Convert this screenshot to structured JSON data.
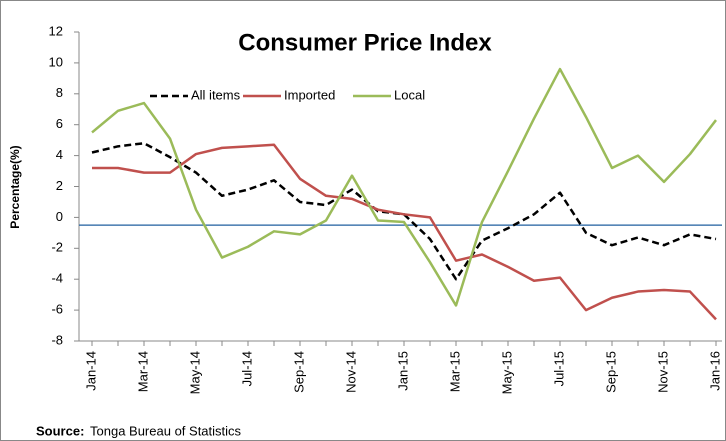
{
  "chart_data": {
    "type": "line",
    "title": "Consumer Price Index",
    "y_label": "Percentage(%)",
    "source_label": "Source:",
    "source": "Tonga Bureau of Statistics",
    "categories": [
      "Jan-14",
      null,
      "Mar-14",
      null,
      "May-14",
      null,
      "Jul-14",
      null,
      "Sep-14",
      null,
      "Nov-14",
      null,
      "Jan-15",
      null,
      "Mar-15",
      null,
      "May-15",
      null,
      "Jul-15",
      null,
      "Sep-15",
      null,
      "Nov-15",
      null,
      "Jan-16"
    ],
    "series": [
      {
        "name": "All items",
        "color": "#000000",
        "dashed": true,
        "values": [
          4.2,
          4.6,
          4.8,
          3.9,
          2.9,
          1.4,
          1.8,
          2.4,
          1.0,
          0.8,
          1.8,
          0.4,
          0.2,
          -1.4,
          -4.0,
          -1.5,
          -0.7,
          0.2,
          1.6,
          -1.0,
          -1.8,
          -1.3,
          -1.8,
          -1.1,
          -1.4
        ]
      },
      {
        "name": "Imported",
        "color": "#c0504d",
        "dashed": false,
        "values": [
          3.2,
          3.2,
          2.9,
          2.9,
          4.1,
          4.5,
          4.6,
          4.7,
          2.5,
          1.4,
          1.2,
          0.5,
          0.2,
          0.0,
          -2.8,
          -2.4,
          -3.2,
          -4.1,
          -3.9,
          -6.0,
          -5.2,
          -4.8,
          -4.7,
          -4.8,
          -6.6
        ]
      },
      {
        "name": "Local",
        "color": "#9bbb59",
        "dashed": false,
        "values": [
          5.5,
          6.9,
          7.4,
          5.1,
          0.5,
          -2.6,
          -1.9,
          -0.9,
          -1.1,
          -0.2,
          2.7,
          -0.2,
          -0.3,
          -2.9,
          -5.7,
          -0.3,
          3.0,
          6.4,
          9.6,
          6.5,
          3.2,
          4.0,
          2.3,
          4.1,
          6.3
        ]
      }
    ],
    "ylim": [
      -8,
      12
    ],
    "yticks": [
      -8,
      -6,
      -4,
      -2,
      0,
      2,
      4,
      6,
      8,
      10,
      12
    ],
    "reference_line": {
      "value": -0.5,
      "color": "#1f5f9f"
    },
    "grid": false
  }
}
